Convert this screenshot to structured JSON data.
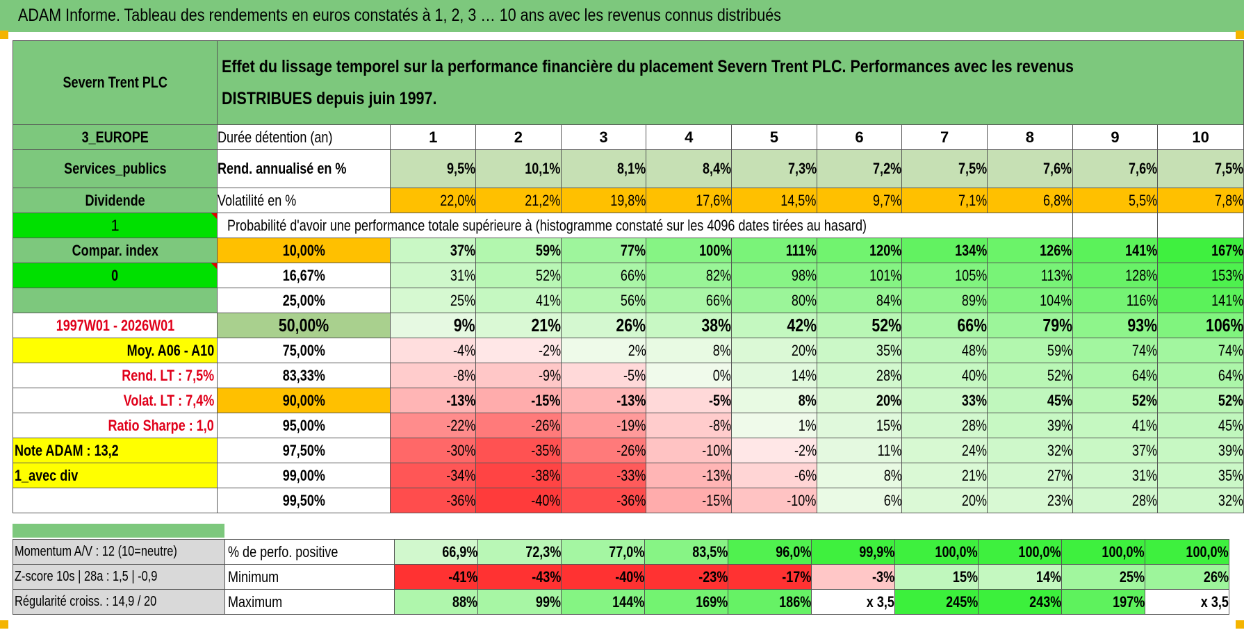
{
  "title": "ADAM Informe. Tableau des rendements en euros constatés à 1, 2, 3 … 10 ans avec les revenus connus distribués",
  "header": {
    "company": "Severn Trent PLC",
    "description": "Effet du lissage temporel sur la performance financière du placement Severn Trent PLC. Performances avec les revenus DISTRIBUES depuis juin 1997."
  },
  "left": {
    "region": "3_EUROPE",
    "sector": "Services_publics",
    "type": "Dividende",
    "flag1": "1",
    "compar": "Compar. index",
    "flag0": "0",
    "period": "1997W01 - 2026W01",
    "moy": "Moy. A06 - A10",
    "rend": "Rend. LT :   7,5%",
    "volat": "Volat. LT :   7,4%",
    "sharpe": "Ratio Sharpe :    1,0",
    "note": "Note ADAM : 13,2",
    "div": "1_avec div"
  },
  "years_label": "Durée détention (an)",
  "years": [
    "1",
    "2",
    "3",
    "4",
    "5",
    "6",
    "7",
    "8",
    "9",
    "10"
  ],
  "rend_label": "Rend. annualisé en %",
  "rend": [
    "9,5%",
    "10,1%",
    "8,1%",
    "8,4%",
    "7,3%",
    "7,2%",
    "7,5%",
    "7,6%",
    "7,6%",
    "7,5%"
  ],
  "vol_label": "Volatilité en %",
  "vol": [
    "22,0%",
    "21,2%",
    "19,8%",
    "17,6%",
    "14,5%",
    "9,7%",
    "7,1%",
    "6,8%",
    "5,5%",
    "7,8%"
  ],
  "prob_label": "Probabilité d'avoir une performance totale supérieure à (histogramme constaté sur les 4096 dates tirées au hasard)",
  "prob_rows": [
    {
      "p": "10,00%",
      "v": [
        "37%",
        "59%",
        "77%",
        "100%",
        "111%",
        "120%",
        "134%",
        "126%",
        "141%",
        "167%"
      ]
    },
    {
      "p": "16,67%",
      "v": [
        "31%",
        "52%",
        "66%",
        "82%",
        "98%",
        "101%",
        "105%",
        "113%",
        "128%",
        "153%"
      ]
    },
    {
      "p": "25,00%",
      "v": [
        "25%",
        "41%",
        "56%",
        "66%",
        "80%",
        "84%",
        "89%",
        "104%",
        "116%",
        "141%"
      ]
    },
    {
      "p": "50,00%",
      "v": [
        "9%",
        "21%",
        "26%",
        "38%",
        "42%",
        "52%",
        "66%",
        "79%",
        "93%",
        "106%"
      ]
    },
    {
      "p": "75,00%",
      "v": [
        "-4%",
        "-2%",
        "2%",
        "8%",
        "20%",
        "35%",
        "48%",
        "59%",
        "74%",
        "74%"
      ]
    },
    {
      "p": "83,33%",
      "v": [
        "-8%",
        "-9%",
        "-5%",
        "0%",
        "14%",
        "28%",
        "40%",
        "52%",
        "64%",
        "64%"
      ]
    },
    {
      "p": "90,00%",
      "v": [
        "-13%",
        "-15%",
        "-13%",
        "-5%",
        "8%",
        "20%",
        "33%",
        "45%",
        "52%",
        "52%"
      ]
    },
    {
      "p": "95,00%",
      "v": [
        "-22%",
        "-26%",
        "-19%",
        "-8%",
        "1%",
        "15%",
        "28%",
        "39%",
        "41%",
        "45%"
      ]
    },
    {
      "p": "97,50%",
      "v": [
        "-30%",
        "-35%",
        "-26%",
        "-10%",
        "-2%",
        "11%",
        "24%",
        "32%",
        "37%",
        "39%"
      ]
    },
    {
      "p": "99,00%",
      "v": [
        "-34%",
        "-38%",
        "-33%",
        "-13%",
        "-6%",
        "8%",
        "21%",
        "27%",
        "31%",
        "35%"
      ]
    },
    {
      "p": "99,50%",
      "v": [
        "-36%",
        "-40%",
        "-36%",
        "-15%",
        "-10%",
        "6%",
        "20%",
        "23%",
        "28%",
        "32%"
      ]
    }
  ],
  "bottom": {
    "momentum": "Momentum A/V : 12 (10=neutre)",
    "zscore": "Z-score 10s | 28a : 1,5 | -0,9",
    "regul": "Régularité croiss. : 14,9 / 20",
    "pos_label": "% de perfo. positive",
    "pos": [
      "66,9%",
      "72,3%",
      "77,0%",
      "83,5%",
      "96,0%",
      "99,9%",
      "100,0%",
      "100,0%",
      "100,0%",
      "100,0%"
    ],
    "min_label": "Minimum",
    "min": [
      "-41%",
      "-43%",
      "-40%",
      "-23%",
      "-17%",
      "-3%",
      "15%",
      "14%",
      "25%",
      "26%"
    ],
    "max_label": "Maximum",
    "max": [
      "88%",
      "99%",
      "144%",
      "169%",
      "186%",
      "x 3,5",
      "245%",
      "243%",
      "197%",
      "x 3,5"
    ]
  },
  "colors": {
    "header_green": "#7dc87d",
    "highlight_yellow": "#ffff00",
    "highlight_orange": "#ffc000",
    "flag_green": "#00e000",
    "label_red": "#e0001a"
  }
}
